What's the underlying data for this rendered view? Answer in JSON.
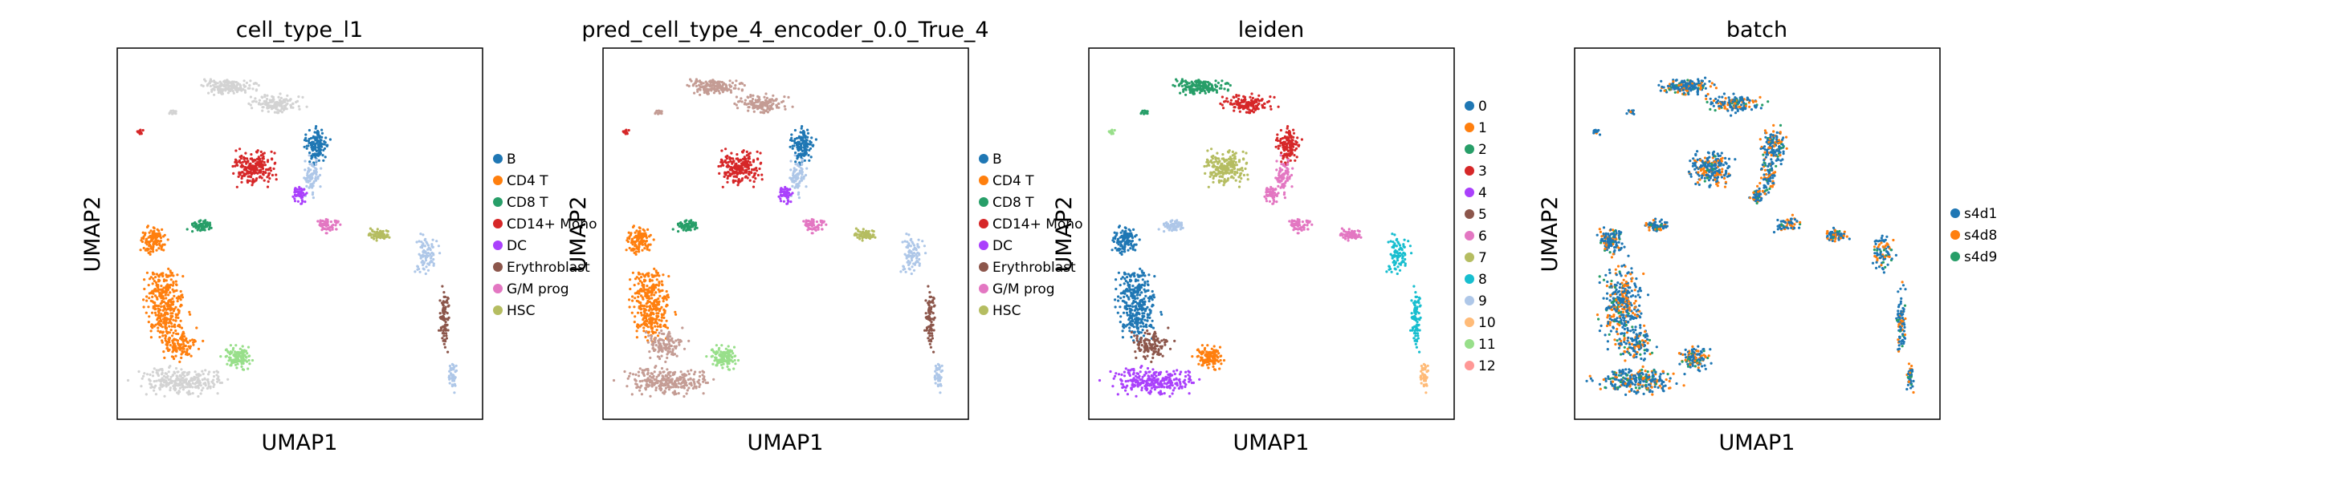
{
  "figure": {
    "panels": [
      {
        "title": "cell_type_l1",
        "xlabel": "UMAP1",
        "ylabel": "UMAP2",
        "legend": [
          {
            "label": "B",
            "color": "#1f77b4"
          },
          {
            "label": "CD4 T",
            "color": "#ff7f0e"
          },
          {
            "label": "CD8 T",
            "color": "#279e68"
          },
          {
            "label": "CD14+ Mono",
            "color": "#d62728"
          },
          {
            "label": "DC",
            "color": "#aa40fc"
          },
          {
            "label": "Erythroblast",
            "color": "#8c564b"
          },
          {
            "label": "G/M prog",
            "color": "#e377c2"
          },
          {
            "label": "HSC",
            "color": "#b5bd61"
          }
        ]
      },
      {
        "title": "pred_cell_type_4_encoder_0.0_True_4",
        "xlabel": "UMAP1",
        "ylabel": "UMAP2",
        "legend": [
          {
            "label": "B",
            "color": "#1f77b4"
          },
          {
            "label": "CD4 T",
            "color": "#ff7f0e"
          },
          {
            "label": "CD8 T",
            "color": "#279e68"
          },
          {
            "label": "CD14+ Mono",
            "color": "#d62728"
          },
          {
            "label": "DC",
            "color": "#aa40fc"
          },
          {
            "label": "Erythroblast",
            "color": "#8c564b"
          },
          {
            "label": "G/M prog",
            "color": "#e377c2"
          },
          {
            "label": "HSC",
            "color": "#b5bd61"
          }
        ]
      },
      {
        "title": "leiden",
        "xlabel": "UMAP1",
        "ylabel": "UMAP2",
        "legend": [
          {
            "label": "0",
            "color": "#1f77b4"
          },
          {
            "label": "1",
            "color": "#ff7f0e"
          },
          {
            "label": "2",
            "color": "#279e68"
          },
          {
            "label": "3",
            "color": "#d62728"
          },
          {
            "label": "4",
            "color": "#aa40fc"
          },
          {
            "label": "5",
            "color": "#8c564b"
          },
          {
            "label": "6",
            "color": "#e377c2"
          },
          {
            "label": "7",
            "color": "#b5bd61"
          },
          {
            "label": "8",
            "color": "#17becf"
          },
          {
            "label": "9",
            "color": "#aec7e8"
          },
          {
            "label": "10",
            "color": "#ffbb78"
          },
          {
            "label": "11",
            "color": "#98df8a"
          },
          {
            "label": "12",
            "color": "#ff9896"
          }
        ]
      },
      {
        "title": "batch",
        "xlabel": "UMAP1",
        "ylabel": "UMAP2",
        "legend": [
          {
            "label": "s4d1",
            "color": "#1f77b4"
          },
          {
            "label": "s4d8",
            "color": "#ff7f0e"
          },
          {
            "label": "s4d9",
            "color": "#279e68"
          }
        ]
      }
    ]
  },
  "chart_data": [
    {
      "type": "scatter",
      "title": "cell_type_l1",
      "xlabel": "UMAP1",
      "ylabel": "UMAP2",
      "grid": false,
      "legend_placement": "right",
      "ticks": "hidden",
      "categories": [
        "B",
        "CD4 T",
        "CD8 T",
        "CD14+ Mono",
        "DC",
        "Erythroblast",
        "G/M prog",
        "HSC"
      ]
    },
    {
      "type": "scatter",
      "title": "pred_cell_type_4_encoder_0.0_True_4",
      "xlabel": "UMAP1",
      "ylabel": "UMAP2",
      "grid": false,
      "legend_placement": "right",
      "ticks": "hidden",
      "categories": [
        "B",
        "CD4 T",
        "CD8 T",
        "CD14+ Mono",
        "DC",
        "Erythroblast",
        "G/M prog",
        "HSC"
      ]
    },
    {
      "type": "scatter",
      "title": "leiden",
      "xlabel": "UMAP1",
      "ylabel": "UMAP2",
      "grid": false,
      "legend_placement": "right",
      "ticks": "hidden",
      "categories": [
        "0",
        "1",
        "2",
        "3",
        "4",
        "5",
        "6",
        "7",
        "8",
        "9",
        "10",
        "11",
        "12"
      ]
    },
    {
      "type": "scatter",
      "title": "batch",
      "xlabel": "UMAP1",
      "ylabel": "UMAP2",
      "grid": false,
      "legend_placement": "right",
      "ticks": "hidden",
      "categories": [
        "s4d1",
        "s4d8",
        "s4d9"
      ]
    }
  ]
}
